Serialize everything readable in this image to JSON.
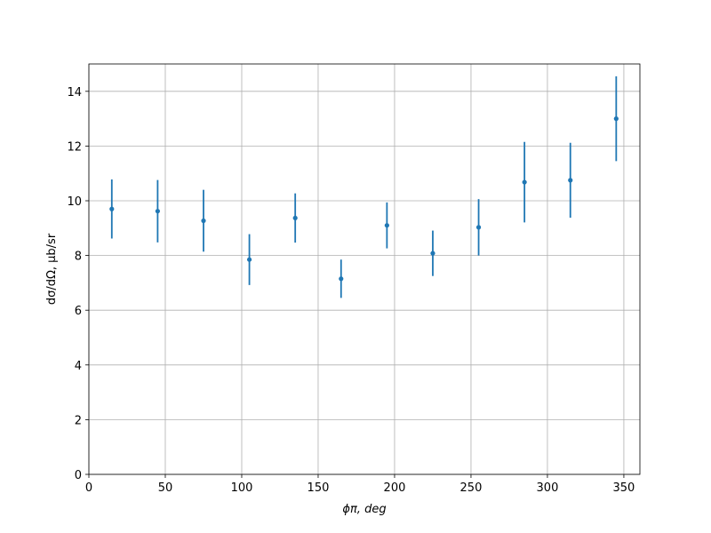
{
  "chart_data": {
    "type": "errorbar",
    "x_label": "ϕπ, deg",
    "y_label": "dσ/dΩ, μb/sr",
    "x": [
      15,
      45,
      75,
      105,
      135,
      165,
      195,
      225,
      255,
      285,
      315,
      345
    ],
    "series": [
      {
        "color": "#1f77b4",
        "values": [
          9.7,
          9.62,
          9.27,
          7.85,
          9.37,
          7.15,
          9.1,
          8.08,
          9.03,
          10.68,
          10.75,
          13.0
        ],
        "errors": [
          1.08,
          1.14,
          1.13,
          0.93,
          0.9,
          0.7,
          0.84,
          0.83,
          1.03,
          1.47,
          1.37,
          1.55
        ]
      }
    ],
    "xlim": [
      0,
      360.5
    ],
    "ylim": [
      0,
      15
    ],
    "xticks": [
      0,
      50,
      100,
      150,
      200,
      250,
      300,
      350
    ],
    "yticks": [
      0,
      2,
      4,
      6,
      8,
      10,
      12,
      14
    ],
    "grid": true
  }
}
